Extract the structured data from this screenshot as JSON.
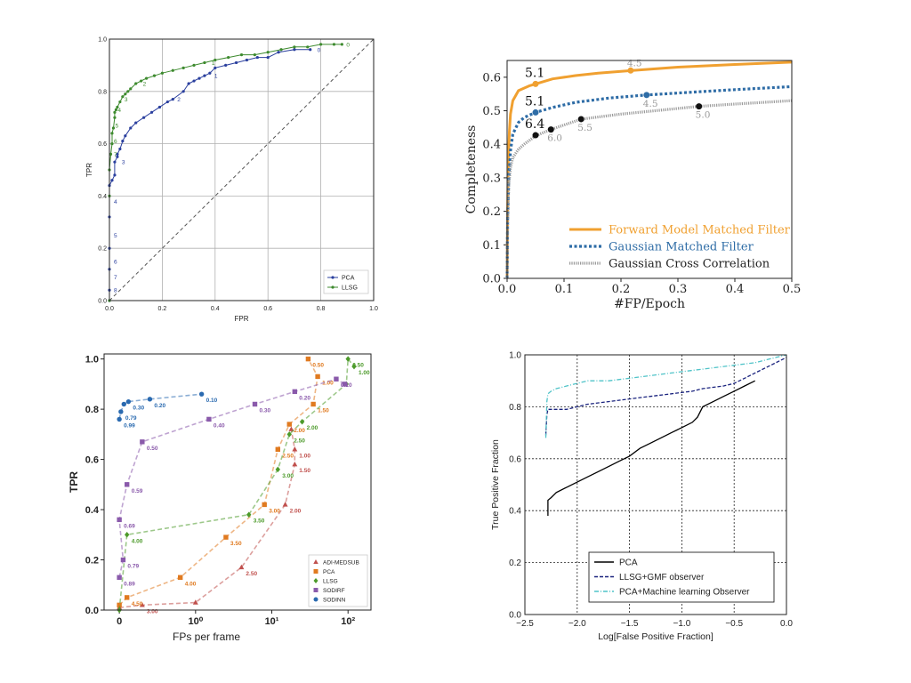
{
  "chart_data": [
    {
      "type": "line",
      "xlabel": "FPR",
      "ylabel": "TPR",
      "xlim": [
        0,
        1
      ],
      "ylim": [
        0,
        1
      ],
      "xticks": [
        "0.0",
        "0.2",
        "0.4",
        "0.6",
        "0.8",
        "1.0"
      ],
      "yticks": [
        "0.0",
        "0.2",
        "0.4",
        "0.6",
        "0.8",
        "1.0"
      ],
      "grid": true,
      "legend_position": "lower-right",
      "colors": {
        "PCA": "#2a3f9e",
        "LLSG": "#3d8a2e",
        "diagonal": "#555555"
      },
      "series": [
        {
          "name": "PCA",
          "x": [
            0,
            0,
            0,
            0,
            0,
            0,
            0.01,
            0.02,
            0.02,
            0.03,
            0.03,
            0.04,
            0.05,
            0.06,
            0.08,
            0.1,
            0.13,
            0.16,
            0.19,
            0.22,
            0.24,
            0.28,
            0.3,
            0.32,
            0.34,
            0.36,
            0.38,
            0.4,
            0.44,
            0.48,
            0.52,
            0.56,
            0.6,
            0.64,
            0.7,
            0.76
          ],
          "y": [
            0,
            0.04,
            0.12,
            0.2,
            0.32,
            0.44,
            0.46,
            0.48,
            0.53,
            0.55,
            0.56,
            0.58,
            0.61,
            0.63,
            0.66,
            0.68,
            0.7,
            0.72,
            0.74,
            0.76,
            0.77,
            0.8,
            0.83,
            0.84,
            0.85,
            0.86,
            0.87,
            0.89,
            0.9,
            0.91,
            0.92,
            0.93,
            0.93,
            0.95,
            0.96,
            0.96
          ],
          "point_labels": [
            {
              "text": "8",
              "x": 0.01,
              "y": 0.04
            },
            {
              "text": "7",
              "x": 0.01,
              "y": 0.09
            },
            {
              "text": "6",
              "x": 0.01,
              "y": 0.15
            },
            {
              "text": "5",
              "x": 0.01,
              "y": 0.25
            },
            {
              "text": "4",
              "x": 0.01,
              "y": 0.38
            },
            {
              "text": "3",
              "x": 0.04,
              "y": 0.53
            },
            {
              "text": "2",
              "x": 0.25,
              "y": 0.77
            },
            {
              "text": "1",
              "x": 0.39,
              "y": 0.86
            },
            {
              "text": "0",
              "x": 0.78,
              "y": 0.96
            }
          ]
        },
        {
          "name": "LLSG",
          "x": [
            0,
            0,
            0,
            0.005,
            0.01,
            0.01,
            0.015,
            0.02,
            0.02,
            0.025,
            0.03,
            0.04,
            0.05,
            0.06,
            0.07,
            0.08,
            0.1,
            0.12,
            0.14,
            0.17,
            0.2,
            0.24,
            0.28,
            0.32,
            0.36,
            0.4,
            0.45,
            0.5,
            0.55,
            0.6,
            0.65,
            0.7,
            0.75,
            0.8,
            0.85,
            0.88
          ],
          "y": [
            0,
            0.4,
            0.5,
            0.56,
            0.6,
            0.64,
            0.66,
            0.7,
            0.72,
            0.73,
            0.74,
            0.76,
            0.78,
            0.79,
            0.8,
            0.81,
            0.83,
            0.84,
            0.85,
            0.86,
            0.87,
            0.88,
            0.89,
            0.9,
            0.91,
            0.92,
            0.93,
            0.94,
            0.94,
            0.95,
            0.96,
            0.97,
            0.97,
            0.98,
            0.98,
            0.98
          ],
          "point_labels": [
            {
              "text": "7",
              "x": 0.01,
              "y": 0.56
            },
            {
              "text": "6",
              "x": 0.01,
              "y": 0.61
            },
            {
              "text": "5",
              "x": 0.015,
              "y": 0.67
            },
            {
              "text": "4",
              "x": 0.025,
              "y": 0.73
            },
            {
              "text": "3",
              "x": 0.05,
              "y": 0.77
            },
            {
              "text": "2",
              "x": 0.12,
              "y": 0.83
            },
            {
              "text": "1",
              "x": 0.38,
              "y": 0.91
            },
            {
              "text": "0",
              "x": 0.89,
              "y": 0.98
            }
          ]
        }
      ]
    },
    {
      "type": "line",
      "xlabel": "#FP/Epoch",
      "ylabel": "Completeness",
      "xlim": [
        0,
        0.5
      ],
      "ylim": [
        0,
        0.65
      ],
      "xticks": [
        "0.0",
        "0.1",
        "0.2",
        "0.3",
        "0.4",
        "0.5"
      ],
      "yticks": [
        "0.0",
        "0.1",
        "0.2",
        "0.3",
        "0.4",
        "0.5",
        "0.6"
      ],
      "grid": false,
      "legend_position": "lower-right",
      "colors": {
        "fmmf": "#f0a030",
        "gmf": "#2e6ca6",
        "gcc": "#9a9a9a",
        "marker": "#111111"
      },
      "series": [
        {
          "name": "Forward Model Matched Filter",
          "x": [
            0,
            0.001,
            0.002,
            0.004,
            0.006,
            0.01,
            0.02,
            0.04,
            0.05,
            0.08,
            0.12,
            0.16,
            0.22,
            0.3,
            0.4,
            0.5
          ],
          "y": [
            0,
            0.2,
            0.35,
            0.44,
            0.49,
            0.53,
            0.56,
            0.575,
            0.58,
            0.595,
            0.605,
            0.612,
            0.62,
            0.63,
            0.638,
            0.645
          ]
        },
        {
          "name": "Gaussian Matched Filter",
          "x": [
            0,
            0.001,
            0.003,
            0.006,
            0.01,
            0.02,
            0.03,
            0.05,
            0.08,
            0.12,
            0.18,
            0.245,
            0.3,
            0.4,
            0.5
          ],
          "y": [
            0,
            0.18,
            0.3,
            0.38,
            0.43,
            0.465,
            0.48,
            0.495,
            0.51,
            0.525,
            0.538,
            0.547,
            0.553,
            0.563,
            0.572
          ]
        },
        {
          "name": "Gaussian Cross Correlation",
          "x": [
            0,
            0.001,
            0.003,
            0.006,
            0.01,
            0.02,
            0.03,
            0.05,
            0.077,
            0.13,
            0.2,
            0.26,
            0.337,
            0.4,
            0.5
          ],
          "y": [
            0,
            0.16,
            0.28,
            0.33,
            0.36,
            0.385,
            0.4,
            0.425,
            0.444,
            0.475,
            0.49,
            0.5,
            0.513,
            0.52,
            0.53
          ]
        }
      ],
      "markers": [
        {
          "series": "Forward Model Matched Filter",
          "label": "5.1",
          "x": 0.05,
          "y": 0.58,
          "label_color": "#111111"
        },
        {
          "series": "Forward Model Matched Filter",
          "label": "4.5",
          "x": 0.217,
          "y": 0.62,
          "label_color": "#999999"
        },
        {
          "series": "Gaussian Matched Filter",
          "label": "5.1",
          "x": 0.05,
          "y": 0.495,
          "label_color": "#111111"
        },
        {
          "series": "Gaussian Matched Filter",
          "label": "4.5",
          "x": 0.245,
          "y": 0.547,
          "label_color": "#999999"
        },
        {
          "series": "Gaussian Cross Correlation",
          "label": "6.4",
          "x": 0.05,
          "y": 0.427,
          "label_color": "#111111"
        },
        {
          "series": "Gaussian Cross Correlation",
          "label": "6.0",
          "x": 0.077,
          "y": 0.444,
          "label_color": "#999999"
        },
        {
          "series": "Gaussian Cross Correlation",
          "label": "5.5",
          "x": 0.13,
          "y": 0.475,
          "label_color": "#999999"
        },
        {
          "series": "Gaussian Cross Correlation",
          "label": "5.0",
          "x": 0.337,
          "y": 0.513,
          "label_color": "#999999"
        }
      ]
    },
    {
      "type": "line",
      "xlabel": "FPs per frame",
      "ylabel": "TPR",
      "xscale": "symlog",
      "xlim": [
        -0.3,
        200
      ],
      "ylim": [
        0,
        1.02
      ],
      "xticks": [
        "0",
        "10⁰",
        "10¹",
        "10²"
      ],
      "yticks": [
        "0.0",
        "0.2",
        "0.4",
        "0.6",
        "0.8",
        "1.0"
      ],
      "grid": false,
      "legend_position": "lower-right",
      "series": [
        {
          "name": "ADI-MEDSUB",
          "color": "#c0504d",
          "points": [
            {
              "x": 0,
              "y": 0.01,
              "label": ""
            },
            {
              "x": 0.3,
              "y": 0.02,
              "label": "3.00"
            },
            {
              "x": 1.0,
              "y": 0.03,
              "label": ""
            },
            {
              "x": 4.0,
              "y": 0.17,
              "label": "2.50"
            },
            {
              "x": 15,
              "y": 0.42,
              "label": "2.00"
            },
            {
              "x": 20,
              "y": 0.58,
              "label": "1.50"
            },
            {
              "x": 20,
              "y": 0.64,
              "label": "1.00"
            },
            {
              "x": 18,
              "y": 0.72,
              "label": ""
            }
          ]
        },
        {
          "name": "PCA",
          "color": "#e07a20",
          "points": [
            {
              "x": 0,
              "y": 0.02,
              "label": ""
            },
            {
              "x": 0.1,
              "y": 0.05,
              "label": "4.50"
            },
            {
              "x": 0.8,
              "y": 0.13,
              "label": "4.00"
            },
            {
              "x": 2.5,
              "y": 0.29,
              "label": "3.50"
            },
            {
              "x": 8.0,
              "y": 0.42,
              "label": "3.00"
            },
            {
              "x": 12,
              "y": 0.64,
              "label": "2.50"
            },
            {
              "x": 17,
              "y": 0.74,
              "label": "2.00"
            },
            {
              "x": 35,
              "y": 0.82,
              "label": "1.50"
            },
            {
              "x": 40,
              "y": 0.93,
              "label": "1.00"
            },
            {
              "x": 30,
              "y": 1.0,
              "label": "0.50"
            }
          ]
        },
        {
          "name": "LLSG",
          "color": "#4c9a2a",
          "points": [
            {
              "x": 0,
              "y": 0.0,
              "label": ""
            },
            {
              "x": 0.1,
              "y": 0.3,
              "label": "4.00"
            },
            {
              "x": 5.0,
              "y": 0.38,
              "label": "3.50"
            },
            {
              "x": 12,
              "y": 0.56,
              "label": "3.00"
            },
            {
              "x": 17,
              "y": 0.7,
              "label": "2.50"
            },
            {
              "x": 25,
              "y": 0.75,
              "label": "2.00"
            },
            {
              "x": 95,
              "y": 0.9,
              "label": ""
            },
            {
              "x": 100,
              "y": 1.0,
              "label": "0.50"
            },
            {
              "x": 120,
              "y": 0.97,
              "label": "1.00"
            }
          ]
        },
        {
          "name": "SODIRF",
          "color": "#8a5aab",
          "points": [
            {
              "x": 0,
              "y": 0.13,
              "label": "0.89"
            },
            {
              "x": 0.05,
              "y": 0.2,
              "label": "0.79"
            },
            {
              "x": 0,
              "y": 0.36,
              "label": "0.69"
            },
            {
              "x": 0.1,
              "y": 0.5,
              "label": "0.59"
            },
            {
              "x": 0.3,
              "y": 0.67,
              "label": "0.50"
            },
            {
              "x": 1.5,
              "y": 0.76,
              "label": "0.40"
            },
            {
              "x": 6.0,
              "y": 0.82,
              "label": "0.30"
            },
            {
              "x": 20,
              "y": 0.87,
              "label": "0.20"
            },
            {
              "x": 70,
              "y": 0.92,
              "label": "0.10"
            },
            {
              "x": 90,
              "y": 0.9,
              "label": ""
            }
          ]
        },
        {
          "name": "SODINN",
          "color": "#2a6ab0",
          "points": [
            {
              "x": 0,
              "y": 0.76,
              "label": "0.99"
            },
            {
              "x": 0.02,
              "y": 0.79,
              "label": "0.79"
            },
            {
              "x": 0.06,
              "y": 0.82,
              "label": ""
            },
            {
              "x": 0.12,
              "y": 0.83,
              "label": "0.30"
            },
            {
              "x": 0.4,
              "y": 0.84,
              "label": "0.20"
            },
            {
              "x": 1.2,
              "y": 0.86,
              "label": "0.10"
            }
          ]
        }
      ]
    },
    {
      "type": "line",
      "xlabel": "Log[False Positive Fraction]",
      "ylabel": "True Positive Fraction",
      "xlim": [
        -2.5,
        0.0
      ],
      "ylim": [
        0,
        1.0
      ],
      "xticks": [
        "−2.5",
        "−2.0",
        "−1.5",
        "−1.0",
        "−0.5",
        "0.0"
      ],
      "yticks": [
        "0.0",
        "0.2",
        "0.4",
        "0.6",
        "0.8",
        "1.0"
      ],
      "grid": true,
      "legend_position": "lower-center",
      "series": [
        {
          "name": "PCA",
          "color": "#000000",
          "style": "solid",
          "x": [
            -2.28,
            -2.28,
            -2.25,
            -2.2,
            -2.1,
            -2.0,
            -1.9,
            -1.8,
            -1.7,
            -1.6,
            -1.5,
            -1.4,
            -1.3,
            -1.2,
            -1.1,
            -1.0,
            -0.9,
            -0.85,
            -0.8,
            -0.7,
            -0.6,
            -0.5,
            -0.4,
            -0.3
          ],
          "y": [
            0.38,
            0.44,
            0.45,
            0.47,
            0.49,
            0.51,
            0.53,
            0.55,
            0.57,
            0.59,
            0.61,
            0.64,
            0.66,
            0.68,
            0.7,
            0.72,
            0.74,
            0.76,
            0.8,
            0.82,
            0.84,
            0.86,
            0.88,
            0.9
          ]
        },
        {
          "name": "LLSG+GMF observer",
          "color": "#1a237e",
          "style": "dashed",
          "x": [
            -2.3,
            -2.29,
            -2.28,
            -2.25,
            -2.2,
            -2.1,
            -2.0,
            -1.9,
            -1.7,
            -1.5,
            -1.3,
            -1.1,
            -0.9,
            -0.8,
            -0.6,
            -0.5,
            -0.4,
            -0.3,
            -0.2,
            -0.1,
            0.0
          ],
          "y": [
            0.69,
            0.77,
            0.79,
            0.79,
            0.79,
            0.79,
            0.8,
            0.81,
            0.82,
            0.83,
            0.84,
            0.85,
            0.86,
            0.87,
            0.88,
            0.89,
            0.91,
            0.93,
            0.95,
            0.97,
            0.99
          ]
        },
        {
          "name": "PCA+Machine learning Observer",
          "color": "#4fc3c8",
          "style": "dashdot",
          "x": [
            -2.3,
            -2.29,
            -2.28,
            -2.25,
            -2.2,
            -2.1,
            -2.0,
            -1.9,
            -1.7,
            -1.5,
            -1.3,
            -1.1,
            -0.9,
            -0.7,
            -0.5,
            -0.3,
            -0.2,
            -0.1,
            0.0
          ],
          "y": [
            0.68,
            0.82,
            0.85,
            0.86,
            0.87,
            0.88,
            0.89,
            0.9,
            0.9,
            0.91,
            0.92,
            0.93,
            0.94,
            0.95,
            0.96,
            0.97,
            0.98,
            0.99,
            1.0
          ]
        }
      ]
    }
  ]
}
